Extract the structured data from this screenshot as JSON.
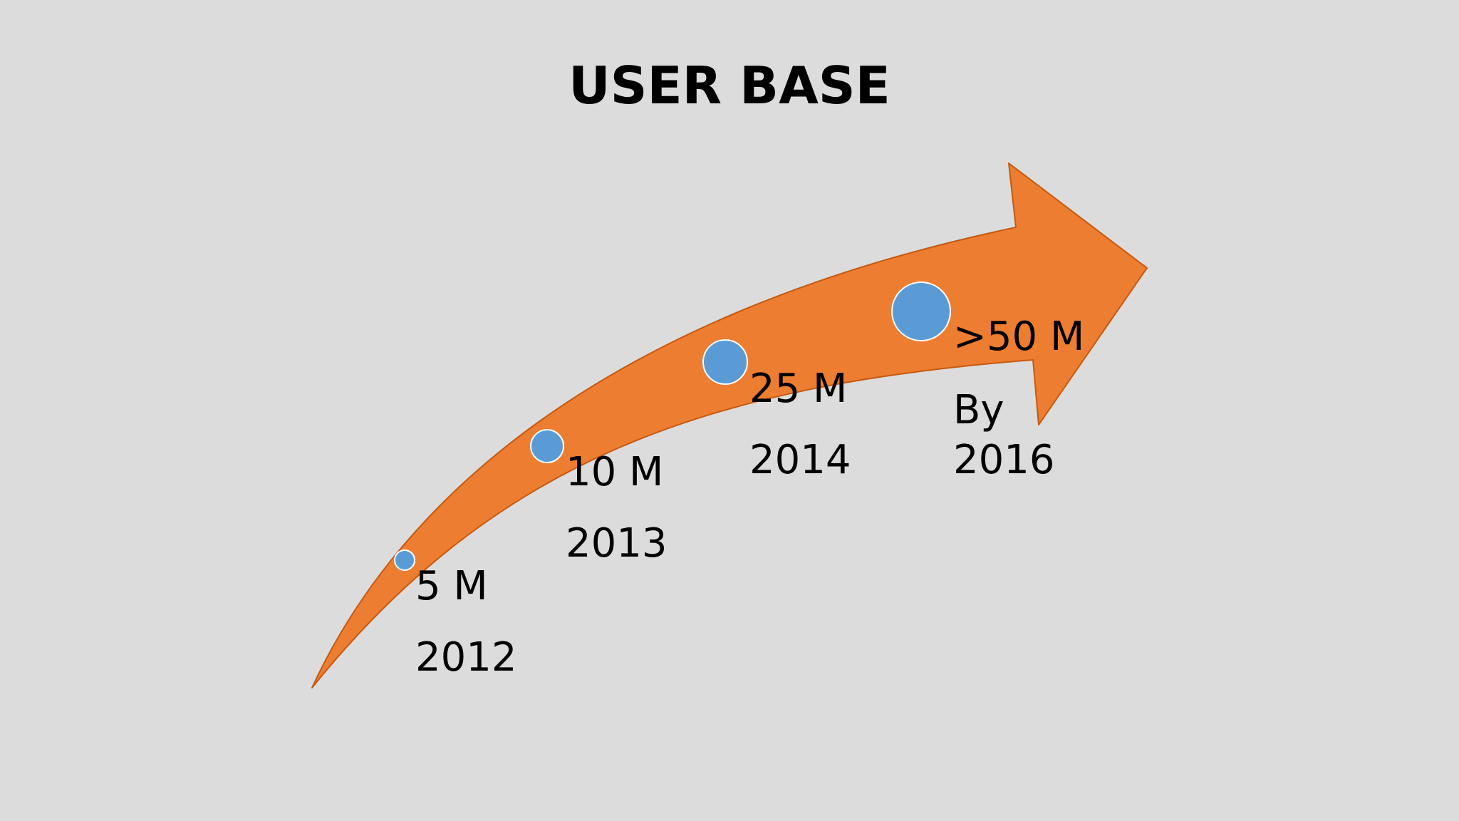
{
  "title": "USER BASE",
  "colors": {
    "background": "#dcdcdc",
    "arrow_fill": "#ed7d31",
    "arrow_stroke": "#c55a11",
    "bubble_fill": "#5b9bd5",
    "bubble_stroke": "#ffffff",
    "text": "#000000"
  },
  "milestones": [
    {
      "value": "5 M",
      "year": "2012",
      "users_millions": 5
    },
    {
      "value": "10 M",
      "year": "2013",
      "users_millions": 10
    },
    {
      "value": "25 M",
      "year": "2014",
      "users_millions": 25
    },
    {
      "value": ">50 M",
      "prefix": "By",
      "year": "2016",
      "users_millions": 50
    }
  ]
}
